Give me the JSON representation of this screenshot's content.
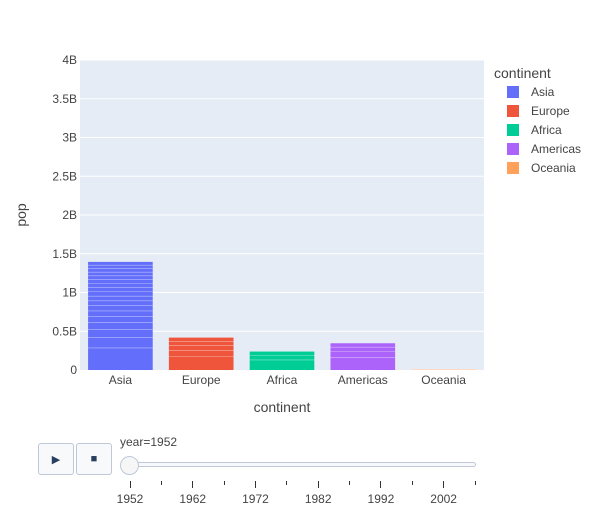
{
  "chart_data": {
    "type": "bar",
    "barmode": "stack",
    "categories": [
      "Asia",
      "Europe",
      "Africa",
      "Americas",
      "Oceania"
    ],
    "values": [
      1395000000,
      418000000,
      238000000,
      345000000,
      11000000
    ],
    "series": [
      {
        "name": "Asia",
        "category": "Asia",
        "color": "#636efa",
        "value": 1395000000
      },
      {
        "name": "Europe",
        "category": "Europe",
        "color": "#ef553b",
        "value": 418000000
      },
      {
        "name": "Africa",
        "category": "Africa",
        "color": "#00cc96",
        "value": 238000000
      },
      {
        "name": "Americas",
        "category": "Americas",
        "color": "#ab63fa",
        "value": 345000000
      },
      {
        "name": "Oceania",
        "category": "Oceania",
        "color": "#ffa15a",
        "value": 11000000
      }
    ],
    "xlabel": "continent",
    "ylabel": "pop",
    "ylim": [
      0,
      4000000000
    ],
    "yticks": [
      0,
      500000000,
      1000000000,
      1500000000,
      2000000000,
      2500000000,
      3000000000,
      3500000000,
      4000000000
    ],
    "ytick_labels": [
      "0",
      "0.5B",
      "1B",
      "1.5B",
      "2B",
      "2.5B",
      "3B",
      "3.5B",
      "4B"
    ],
    "grid": true,
    "legend_title": "continent",
    "legend_position": "right",
    "plot_background": "#e5ecf6"
  },
  "animation": {
    "current_label": "year=1952",
    "current_year": 1952,
    "slider_tick_labels": [
      "1952",
      "1962",
      "1972",
      "1982",
      "1992",
      "2002"
    ],
    "slider_step_count": 12,
    "play_icon": "play-icon",
    "stop_icon": "stop-icon"
  }
}
